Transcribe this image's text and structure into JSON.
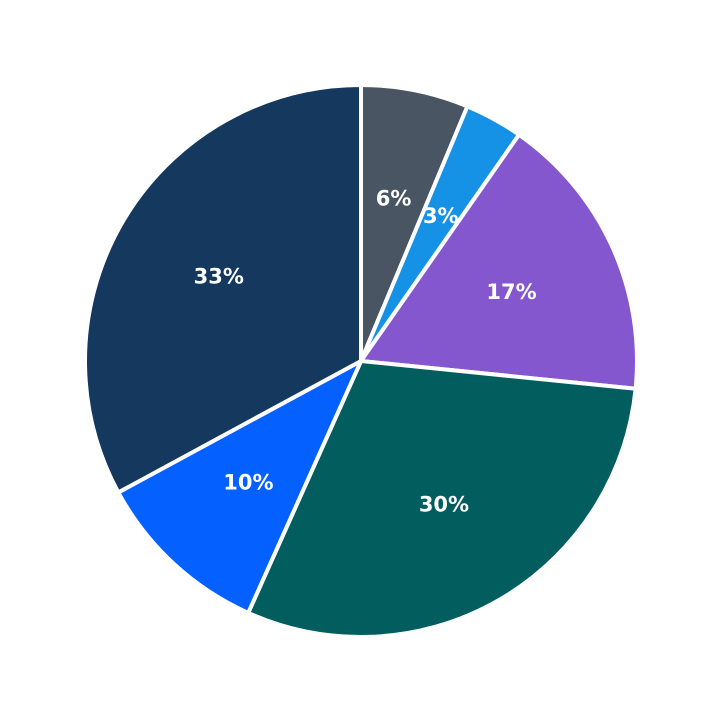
{
  "chart_data": {
    "type": "pie",
    "title": "",
    "start_angle_deg": 0,
    "direction": "clockwise",
    "slices": [
      {
        "label": "6%",
        "value": 6.3,
        "color": "#4a5563"
      },
      {
        "label": "3%",
        "value": 3.4,
        "color": "#1592e6"
      },
      {
        "label": "17%",
        "value": 16.9,
        "color": "#8457cf"
      },
      {
        "label": "30%",
        "value": 30.1,
        "color": "#025e5e"
      },
      {
        "label": "10%",
        "value": 10.4,
        "color": "#0461ff"
      },
      {
        "label": "33%",
        "value": 32.9,
        "color": "#15385f"
      }
    ]
  }
}
